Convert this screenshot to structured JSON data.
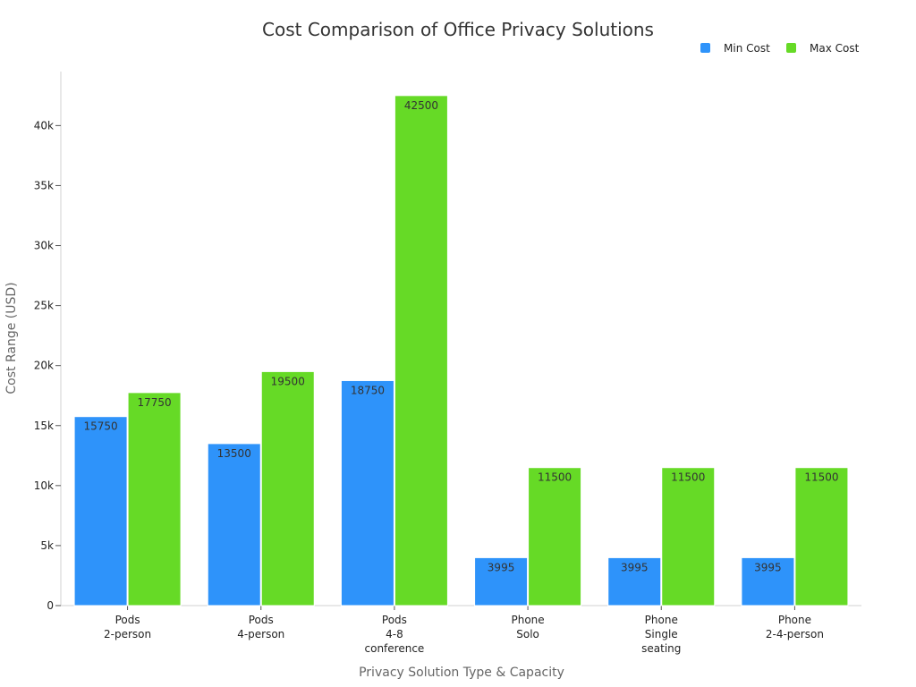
{
  "chart_data": {
    "type": "bar",
    "title": "Cost Comparison of Office Privacy Solutions",
    "xlabel": "Privacy Solution Type & Capacity",
    "ylabel": "Cost Range (USD)",
    "ylim": [
      0,
      44500
    ],
    "yticks": [
      {
        "value": 0,
        "label": "0"
      },
      {
        "value": 5000,
        "label": "5k"
      },
      {
        "value": 10000,
        "label": "10k"
      },
      {
        "value": 15000,
        "label": "15k"
      },
      {
        "value": 20000,
        "label": "20k"
      },
      {
        "value": 25000,
        "label": "25k"
      },
      {
        "value": 30000,
        "label": "30k"
      },
      {
        "value": 35000,
        "label": "35k"
      },
      {
        "value": 40000,
        "label": "40k"
      }
    ],
    "categories": [
      [
        "Pods",
        "2-person"
      ],
      [
        "Pods",
        "4-person"
      ],
      [
        "Pods",
        "4-8",
        "conference"
      ],
      [
        "Phone",
        "Solo"
      ],
      [
        "Phone",
        "Single",
        "seating"
      ],
      [
        "Phone",
        "2-4-person"
      ]
    ],
    "series": [
      {
        "name": "Min Cost",
        "color": "#2E93FA",
        "values": [
          15750,
          13500,
          18750,
          3995,
          3995,
          3995
        ]
      },
      {
        "name": "Max Cost",
        "color": "#66DA26",
        "values": [
          17750,
          19500,
          42500,
          11500,
          11500,
          11500
        ]
      }
    ],
    "legend_position": "top-right",
    "grid": false
  }
}
